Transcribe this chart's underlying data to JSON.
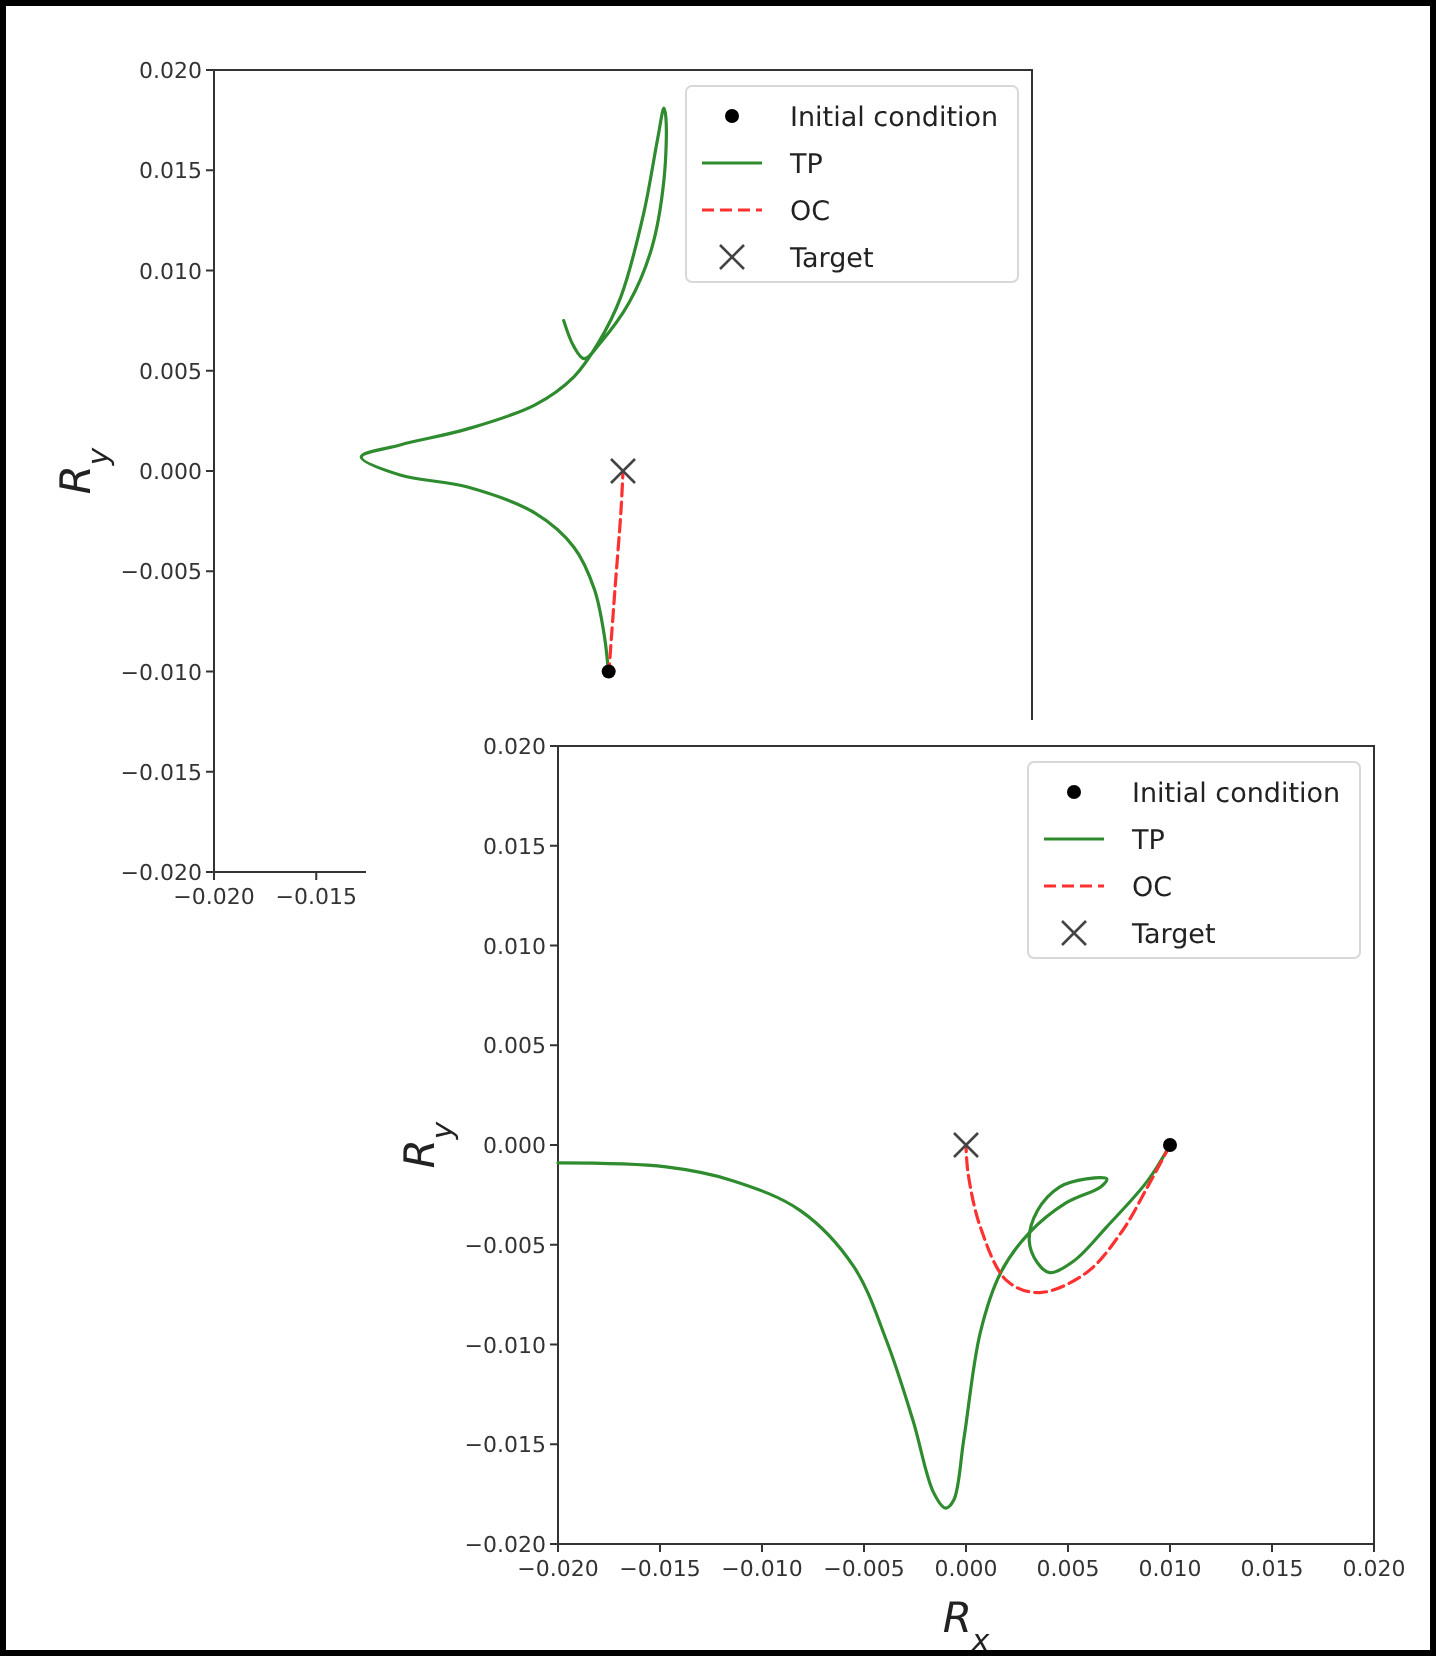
{
  "chart_data": [
    {
      "type": "line",
      "ylabel": "R$_{y}$",
      "xlim": [
        -0.02,
        0.02
      ],
      "ylim": [
        -0.02,
        0.02
      ],
      "xticks": [
        {
          "value": -0.02,
          "label": "−0.020"
        },
        {
          "value": -0.015,
          "label": "−0.015"
        }
      ],
      "yticks": [
        {
          "value": -0.02,
          "label": "−0.020"
        },
        {
          "value": -0.015,
          "label": "−0.015"
        },
        {
          "value": -0.01,
          "label": "−0.010"
        },
        {
          "value": -0.005,
          "label": "−0.005"
        },
        {
          "value": 0,
          "label": "0.000"
        },
        {
          "value": 0.005,
          "label": "0.005"
        },
        {
          "value": 0.01,
          "label": "0.010"
        },
        {
          "value": 0.015,
          "label": "0.015"
        },
        {
          "value": 0.02,
          "label": "0.020"
        }
      ],
      "legend": "top right",
      "grid": false,
      "series": [
        {
          "name": "Initial condition",
          "type": "scatter",
          "marker": "circle",
          "color": "#000000",
          "x": [
            -0.0007
          ],
          "values": [
            -0.01
          ]
        },
        {
          "name": "TP",
          "type": "line",
          "line_style": "solid",
          "color": "#2e8b2e",
          "x": [
            -0.0007,
            -0.0009,
            -0.0014,
            -0.0024,
            -0.0043,
            -0.0076,
            -0.0109,
            -0.0128,
            -0.0109,
            -0.0076,
            -0.0043,
            -0.0024,
            -0.0012,
            -0.0001,
            0.001,
            0.0017,
            0.002,
            0.0021,
            0.002,
            0.0014,
            0.0003,
            -0.0011,
            -0.0019,
            -0.0024,
            -0.0029
          ],
          "values": [
            -0.0102,
            -0.0083,
            -0.0059,
            -0.0038,
            -0.0021,
            -0.0008,
            -0.0002,
            0.0007,
            0.0013,
            0.0021,
            0.0033,
            0.0047,
            0.0064,
            0.0087,
            0.0128,
            0.0166,
            0.0181,
            0.0176,
            0.0145,
            0.0111,
            0.0084,
            0.0064,
            0.0056,
            0.0062,
            0.0075
          ]
        },
        {
          "name": "OC",
          "type": "line",
          "line_style": "dashed",
          "color": "#ff3030",
          "x": [
            -0.0007,
            -0.0004,
            -0.0001,
            0
          ],
          "values": [
            -0.0102,
            -0.006,
            -0.002,
            0
          ]
        },
        {
          "name": "Target",
          "type": "scatter",
          "marker": "cross",
          "color": "#444444",
          "x": [
            0
          ],
          "values": [
            0
          ]
        }
      ]
    },
    {
      "type": "line",
      "xlabel": "R$_{x}$",
      "ylabel": "R$_{y}$",
      "xlim": [
        -0.02,
        0.02
      ],
      "ylim": [
        -0.02,
        0.02
      ],
      "xticks": [
        {
          "value": -0.02,
          "label": "−0.020"
        },
        {
          "value": -0.015,
          "label": "−0.015"
        },
        {
          "value": -0.01,
          "label": "−0.010"
        },
        {
          "value": -0.005,
          "label": "−0.005"
        },
        {
          "value": 0,
          "label": "0.000"
        },
        {
          "value": 0.005,
          "label": "0.005"
        },
        {
          "value": 0.01,
          "label": "0.010"
        },
        {
          "value": 0.015,
          "label": "0.015"
        },
        {
          "value": 0.02,
          "label": "0.020"
        }
      ],
      "yticks": [
        {
          "value": -0.02,
          "label": "−0.020"
        },
        {
          "value": -0.015,
          "label": "−0.015"
        },
        {
          "value": -0.01,
          "label": "−0.010"
        },
        {
          "value": -0.005,
          "label": "−0.005"
        },
        {
          "value": 0,
          "label": "0.000"
        },
        {
          "value": 0.005,
          "label": "0.005"
        },
        {
          "value": 0.01,
          "label": "0.010"
        },
        {
          "value": 0.015,
          "label": "0.015"
        },
        {
          "value": 0.02,
          "label": "0.020"
        }
      ],
      "legend": "top right",
      "grid": false,
      "series": [
        {
          "name": "Initial condition",
          "type": "scatter",
          "marker": "circle",
          "color": "#000000",
          "x": [
            0.01
          ],
          "values": [
            0
          ]
        },
        {
          "name": "TP",
          "type": "line",
          "line_style": "solid",
          "color": "#2e8b2e",
          "x": [
            0.01,
            0.0089,
            0.0069,
            0.0053,
            0.0041,
            0.0035,
            0.0031,
            0.0035,
            0.0046,
            0.0059,
            0.0069,
            0.0066,
            0.0049,
            0.0031,
            0.0017,
            0.0007,
            -0.0001,
            -0.0006,
            -0.001,
            -0.0016,
            -0.0026,
            -0.0039,
            -0.0055,
            -0.0081,
            -0.0114,
            -0.0147,
            -0.02
          ],
          "values": [
            0,
            -0.0018,
            -0.0041,
            -0.0058,
            -0.0064,
            -0.0059,
            -0.0048,
            -0.0033,
            -0.0021,
            -0.0017,
            -0.0017,
            -0.0021,
            -0.0029,
            -0.0044,
            -0.0064,
            -0.0094,
            -0.0147,
            -0.0178,
            -0.0182,
            -0.0174,
            -0.0138,
            -0.0098,
            -0.0061,
            -0.0033,
            -0.0018,
            -0.0011,
            -0.0009
          ]
        },
        {
          "name": "OC",
          "type": "line",
          "line_style": "dashed",
          "color": "#ff3030",
          "x": [
            0.01,
            0.0089,
            0.0076,
            0.0059,
            0.0036,
            0.002,
            0.0007,
            0.0001,
            0
          ],
          "values": [
            0,
            -0.0021,
            -0.0044,
            -0.0064,
            -0.0074,
            -0.0068,
            -0.0041,
            -0.0014,
            0
          ]
        },
        {
          "name": "Target",
          "type": "scatter",
          "marker": "cross",
          "color": "#444444",
          "x": [
            0
          ],
          "values": [
            0
          ]
        }
      ]
    }
  ]
}
